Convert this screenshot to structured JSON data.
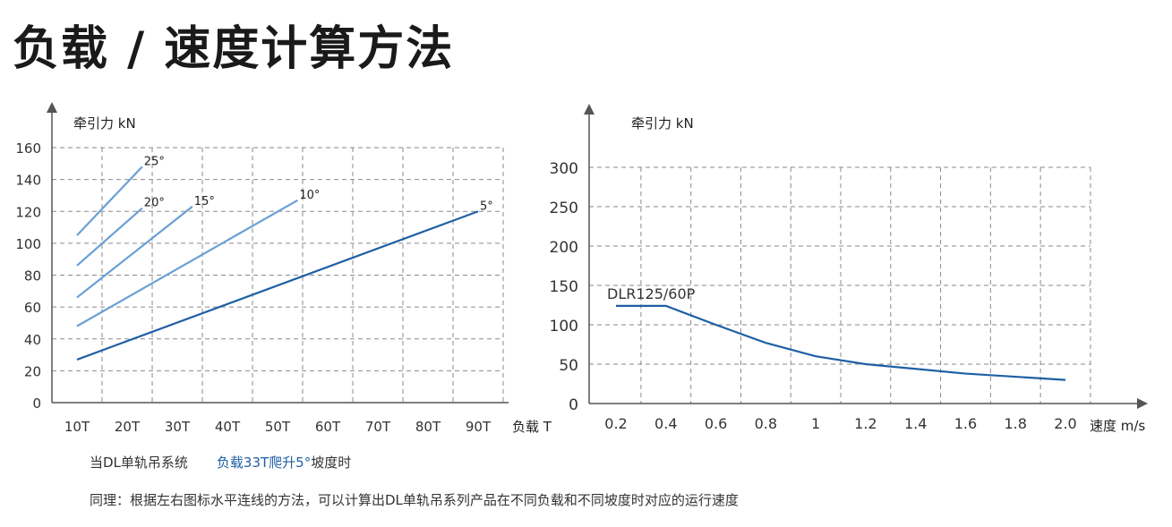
{
  "title": "负载 / 速度计算方法",
  "notes": {
    "line1_a": "当DL单轨吊系统",
    "line1_b": "负载33T爬升5°",
    "line1_c": "坡度时",
    "line2": "同理：根据左右图标水平连线的方法，可以计算出DL单轨吊系列产品在不同负载和不同坡度时对应的运行速度"
  },
  "chart_data": [
    {
      "type": "line",
      "ylabel": "牵引力 kN",
      "xlabel": "负载 T",
      "ylim": [
        0,
        160
      ],
      "yticks": [
        0,
        20,
        40,
        60,
        80,
        100,
        120,
        140,
        160
      ],
      "categories": [
        "10T",
        "20T",
        "30T",
        "40T",
        "50T",
        "60T",
        "70T",
        "80T",
        "90T"
      ],
      "grid": true,
      "series": [
        {
          "name": "25°",
          "x": [
            10,
            23
          ],
          "y": [
            105,
            148
          ]
        },
        {
          "name": "20°",
          "x": [
            10,
            23
          ],
          "y": [
            86,
            122
          ]
        },
        {
          "name": "15°",
          "x": [
            10,
            33
          ],
          "y": [
            66,
            123
          ]
        },
        {
          "name": "10°",
          "x": [
            10,
            54
          ],
          "y": [
            48,
            127
          ]
        },
        {
          "name": "5°",
          "x": [
            10,
            90
          ],
          "y": [
            27,
            120
          ]
        }
      ],
      "colors": {
        "light": "#6a9fd4",
        "dark": "#1f5fa5"
      }
    },
    {
      "type": "line",
      "ylabel": "牵引力 kN",
      "xlabel": "速度 m/s",
      "ylim": [
        0,
        300
      ],
      "yticks": [
        0,
        50,
        100,
        150,
        200,
        250,
        300
      ],
      "xticks": [
        "0.2",
        "0.4",
        "0.6",
        "0.8",
        "1",
        "1.2",
        "1.4",
        "1.6",
        "1.8",
        "2.0"
      ],
      "xlim": [
        0.2,
        2.0
      ],
      "grid": true,
      "series": [
        {
          "name": "DLR125/60P",
          "x": [
            0.2,
            0.4,
            0.6,
            0.8,
            1.0,
            1.2,
            1.4,
            1.6,
            1.8,
            2.0
          ],
          "y": [
            124,
            124,
            100,
            77,
            60,
            50,
            44,
            38,
            34,
            30
          ]
        }
      ],
      "colors": {
        "line": "#1f5fa5"
      }
    }
  ]
}
